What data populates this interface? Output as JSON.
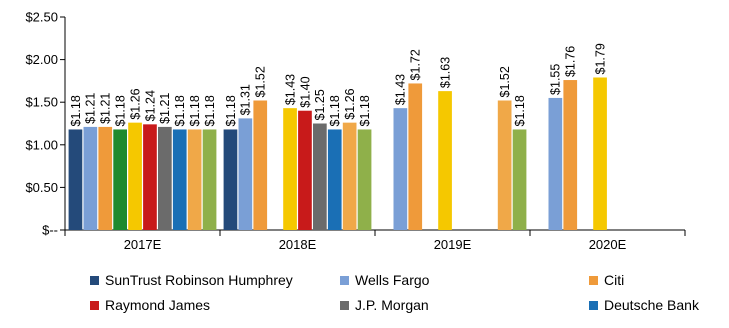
{
  "chart_data": {
    "type": "bar",
    "categories": [
      "2017E",
      "2018E",
      "2019E",
      "2020E"
    ],
    "y_tick_labels": [
      "$--",
      "$0.50",
      "$1.00",
      "$1.50",
      "$2.00",
      "$2.50"
    ],
    "y_ticks": [
      0,
      0.5,
      1.0,
      1.5,
      2.0,
      2.5
    ],
    "ylim": [
      0,
      2.5
    ],
    "grid": false,
    "legend_position": "bottom",
    "series": [
      {
        "name": "SunTrust Robinson Humphrey",
        "color": "#244a7a",
        "values": [
          1.18,
          1.18,
          null,
          null
        ],
        "labels": [
          "$1.18",
          "$1.18",
          null,
          null
        ]
      },
      {
        "name": "Wells Fargo",
        "color": "#7a9fd6",
        "values": [
          1.21,
          1.31,
          1.43,
          1.55
        ],
        "labels": [
          "$1.21",
          "$1.31",
          "$1.43",
          "$1.55"
        ]
      },
      {
        "name": "Citi",
        "color": "#ef9a3a",
        "values": [
          1.21,
          1.52,
          1.72,
          1.76
        ],
        "labels": [
          "$1.21",
          "$1.52",
          "$1.72",
          "$1.76"
        ]
      },
      {
        "name": null,
        "color": "#1f8a2e",
        "values": [
          1.18,
          null,
          null,
          null
        ],
        "labels": [
          "$1.18",
          null,
          null,
          null
        ]
      },
      {
        "name": null,
        "color": "#f5c800",
        "values": [
          1.26,
          1.43,
          1.63,
          1.79
        ],
        "labels": [
          "$1.26",
          "$1.43",
          "$1.63",
          "$1.79"
        ]
      },
      {
        "name": "Raymond James",
        "color": "#c81a1a",
        "values": [
          1.24,
          1.4,
          null,
          null
        ],
        "labels": [
          "$1.24",
          "$1.40",
          null,
          null
        ]
      },
      {
        "name": "J.P. Morgan",
        "color": "#6b6b6b",
        "values": [
          1.21,
          1.25,
          null,
          null
        ],
        "labels": [
          "$1.21",
          "$1.25",
          null,
          null
        ]
      },
      {
        "name": "Deutsche Bank",
        "color": "#1a6fb5",
        "values": [
          1.18,
          1.18,
          null,
          null
        ],
        "labels": [
          "$1.18",
          "$1.18",
          null,
          null
        ]
      },
      {
        "name": null,
        "color": "#f0a848",
        "values": [
          1.18,
          1.26,
          1.52,
          null
        ],
        "labels": [
          "$1.18",
          "$1.26",
          "$1.52",
          null
        ]
      },
      {
        "name": null,
        "color": "#8fb04a",
        "values": [
          1.18,
          1.18,
          1.18,
          null
        ],
        "labels": [
          "$1.18",
          "$1.18",
          "$1.18",
          null
        ]
      }
    ]
  }
}
